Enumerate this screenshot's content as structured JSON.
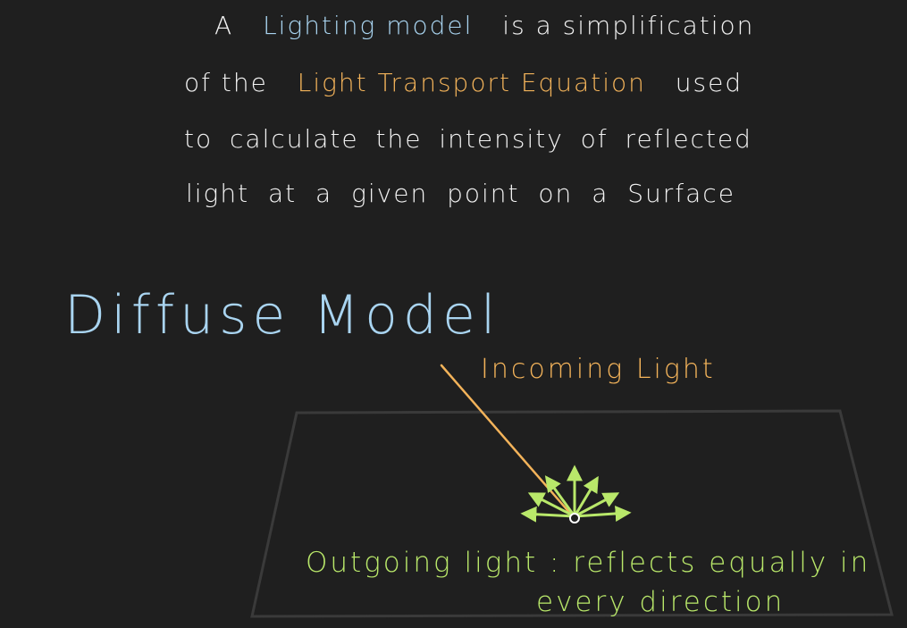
{
  "definition": {
    "line1": {
      "part1": "A",
      "part2": "Lighting model",
      "part3": "is a simplification"
    },
    "line2": {
      "part1": "of the",
      "part2": "Light Transport Equation",
      "part3": "used"
    },
    "line3": "to calculate the intensity of reflected",
    "line4": "light at a given point on a Surface"
  },
  "section_title": "Diffuse Model",
  "diagram": {
    "incoming_label": "Incoming Light",
    "outgoing_label_line1": "Outgoing light : reflects equally in",
    "outgoing_label_line2": "every direction"
  },
  "colors": {
    "background": "#1f1f1f",
    "text": "#f2f2f2",
    "blue": "#a9d4f0",
    "orange": "#f3b35a",
    "green": "#b9e86a",
    "plane": "#3a3a3a"
  }
}
